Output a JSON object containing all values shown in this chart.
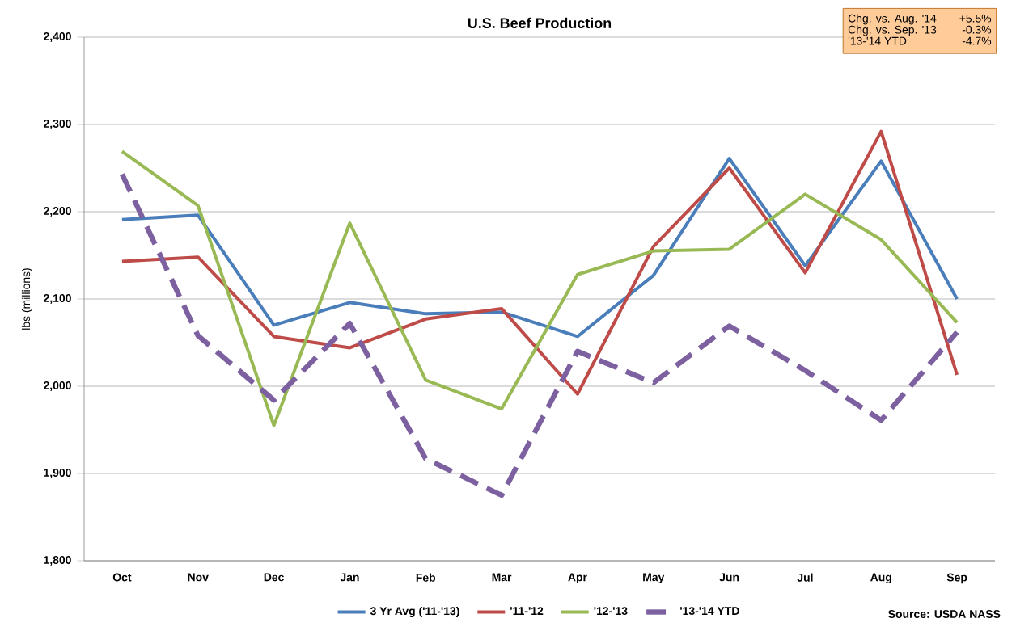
{
  "chart_data": {
    "type": "line",
    "title": "U.S. Beef Production",
    "ylabel": "lbs (millions)",
    "categories": [
      "Oct",
      "Nov",
      "Dec",
      "Jan",
      "Feb",
      "Mar",
      "Apr",
      "May",
      "Jun",
      "Jul",
      "Aug",
      "Sep"
    ],
    "series": [
      {
        "name": "3 Yr Avg ('11-'13)",
        "color": "#4a7ebb",
        "values": [
          2191,
          2196,
          2070,
          2096,
          2083,
          2085,
          2057,
          2127,
          2261,
          2138,
          2258,
          2100
        ]
      },
      {
        "name": "'11-'12",
        "color": "#be4b48",
        "values": [
          2143,
          2148,
          2057,
          2044,
          2077,
          2089,
          1991,
          2160,
          2250,
          2130,
          2292,
          2013
        ]
      },
      {
        "name": "'12-'13",
        "color": "#98b954",
        "values": [
          2269,
          2207,
          1955,
          2187,
          2007,
          1974,
          2128,
          2155,
          2157,
          2220,
          2168,
          2073
        ]
      },
      {
        "name": "'13-'14 YTD",
        "color": "#7d60a0",
        "line_style": "dashed",
        "values": [
          2243,
          2058,
          1984,
          2072,
          1917,
          1875,
          2040,
          2004,
          2069,
          2018,
          1961,
          2062
        ]
      }
    ],
    "ylim": [
      1800,
      2400
    ],
    "yticks": [
      {
        "value": 1800,
        "label": "1,800"
      },
      {
        "value": 1900,
        "label": "1,900"
      },
      {
        "value": 2000,
        "label": "2,000"
      },
      {
        "value": 2100,
        "label": "2,100"
      },
      {
        "value": 2200,
        "label": "2,200"
      },
      {
        "value": 2300,
        "label": "2,300"
      },
      {
        "value": 2400,
        "label": "2,400"
      }
    ],
    "grid": "y",
    "legend": "bottom",
    "annotations": [
      "Chg. vs. Aug. '14",
      "+5.5%",
      "Chg. vs. Sep. '13",
      "-0.3%",
      "'13-'14 YTD",
      "-4.7%",
      "Source: USDA NASS"
    ]
  }
}
